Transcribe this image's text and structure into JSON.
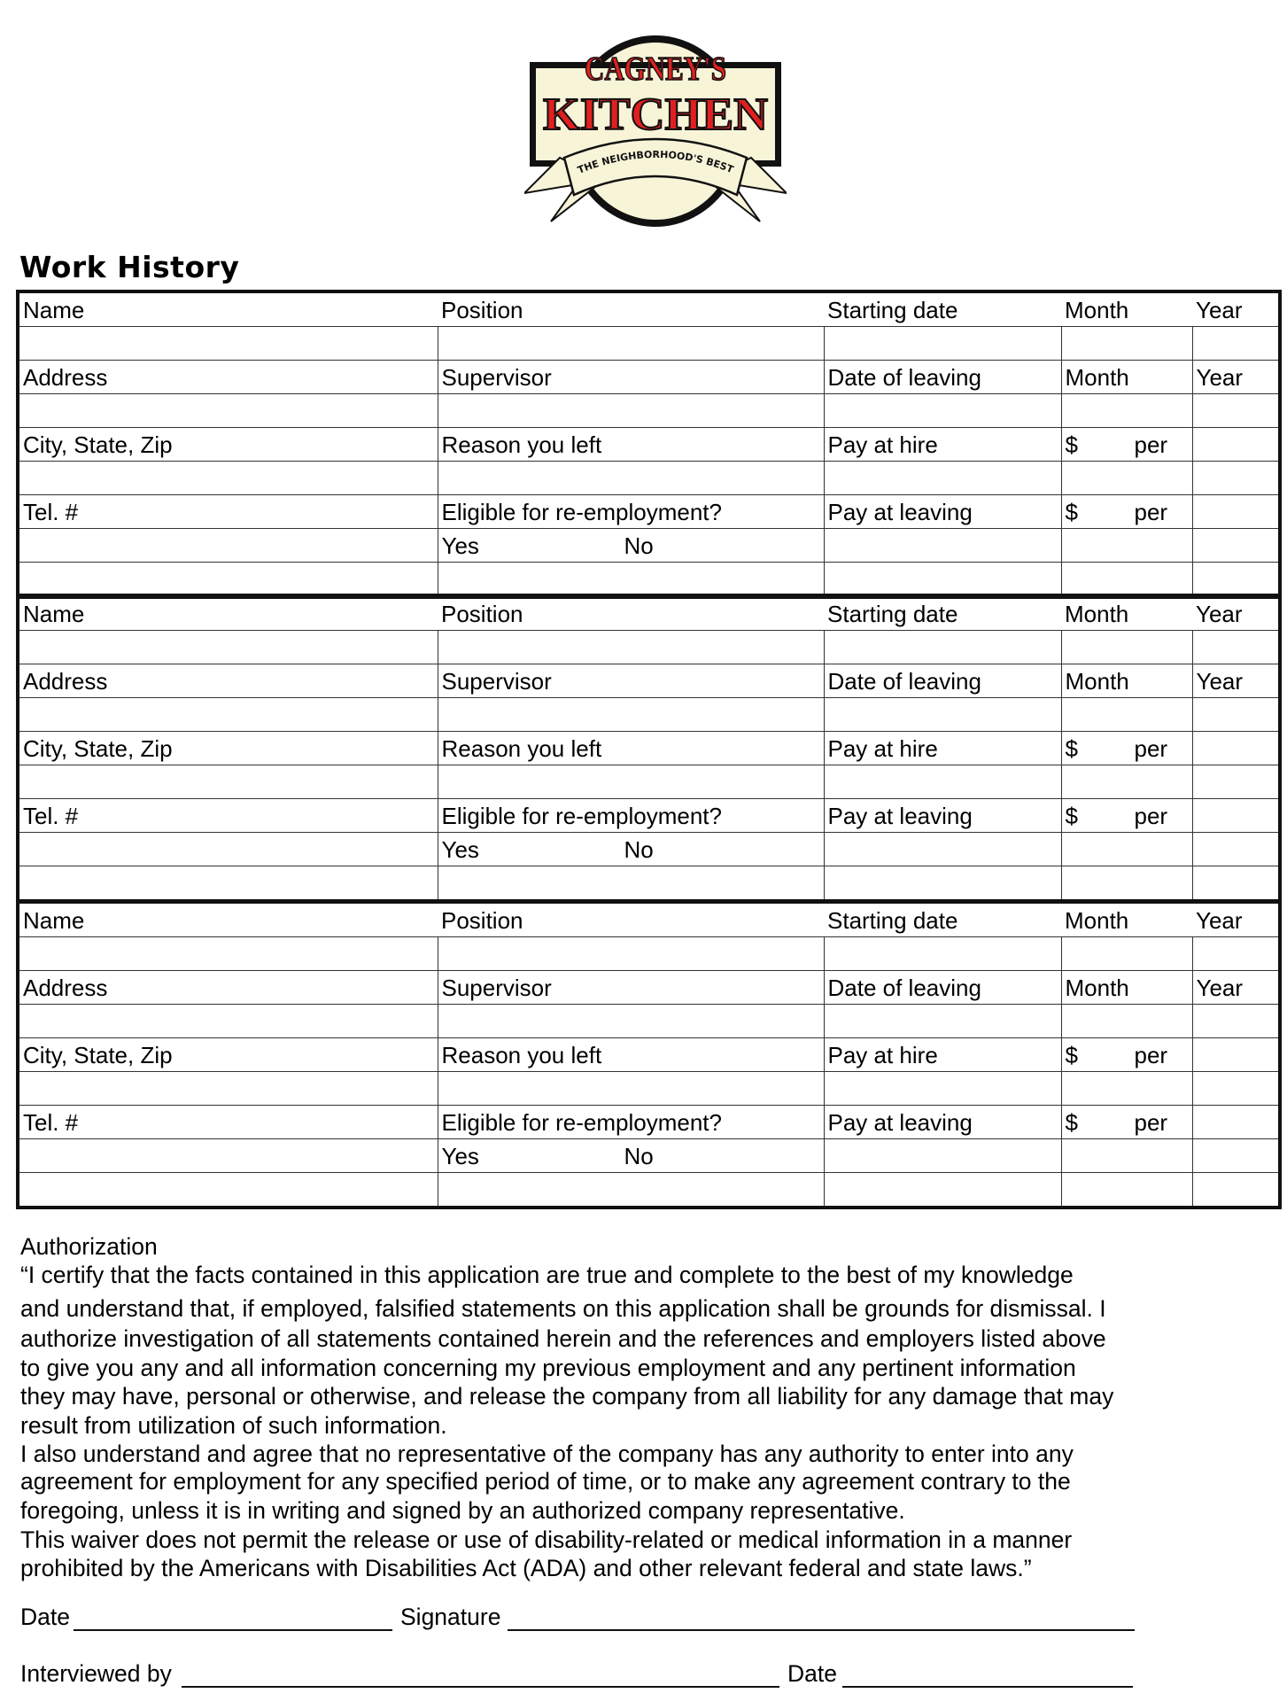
{
  "logo": {
    "line1": "CAGNEY'S",
    "line2": "KITCHEN",
    "tagline": "THE NEIGHBORHOOD'S BEST KEPT SECRET",
    "colors": {
      "red": "#e02020",
      "cream": "#f8f4d8",
      "black": "#111111"
    }
  },
  "work_history": {
    "title": "Work History",
    "blocks": [
      {
        "rows": [
          [
            "Name",
            "Position",
            "Starting date",
            "Month",
            "Year"
          ],
          [
            "",
            "",
            "",
            "",
            ""
          ],
          [
            "Address",
            "Supervisor",
            "Date of leaving",
            "Month",
            "Year"
          ],
          [
            "",
            "",
            "",
            "",
            ""
          ],
          [
            "City, State, Zip",
            "Reason you left",
            "Pay at hire",
            [
              "$",
              "per"
            ],
            ""
          ],
          [
            "",
            "",
            "",
            "",
            ""
          ],
          [
            "Tel. #",
            "Eligible for re-employment?",
            "Pay at leaving",
            [
              "$",
              "per"
            ],
            ""
          ],
          [
            "",
            [
              "Yes",
              "No"
            ],
            "",
            "",
            ""
          ],
          [
            "",
            "",
            "",
            "",
            ""
          ]
        ]
      },
      {
        "rows": [
          [
            "Name",
            "Position",
            "Starting date",
            "Month",
            "Year"
          ],
          [
            "",
            "",
            "",
            "",
            ""
          ],
          [
            "Address",
            "Supervisor",
            "Date of leaving",
            "Month",
            "Year"
          ],
          [
            "",
            "",
            "",
            "",
            ""
          ],
          [
            "City, State, Zip",
            "Reason you left",
            "Pay at hire",
            [
              "$",
              "per"
            ],
            ""
          ],
          [
            "",
            "",
            "",
            "",
            ""
          ],
          [
            "Tel. #",
            "Eligible for re-employment?",
            "Pay at leaving",
            [
              "$",
              "per"
            ],
            ""
          ],
          [
            "",
            [
              "Yes",
              "No"
            ],
            "",
            "",
            ""
          ],
          [
            "",
            "",
            "",
            "",
            ""
          ]
        ]
      },
      {
        "rows": [
          [
            "Name",
            "Position",
            "Starting date",
            "Month",
            "Year"
          ],
          [
            "",
            "",
            "",
            "",
            ""
          ],
          [
            "Address",
            "Supervisor",
            "Date of leaving",
            "Month",
            "Year"
          ],
          [
            "",
            "",
            "",
            "",
            ""
          ],
          [
            "City, State, Zip",
            "Reason you left",
            "Pay at hire",
            [
              "$",
              "per"
            ],
            ""
          ],
          [
            "",
            "",
            "",
            "",
            ""
          ],
          [
            "Tel. #",
            "Eligible for re-employment?",
            "Pay at leaving",
            [
              "$",
              "per"
            ],
            ""
          ],
          [
            "",
            [
              "Yes",
              "No"
            ],
            "",
            "",
            ""
          ],
          [
            "",
            "",
            "",
            "",
            ""
          ]
        ]
      }
    ]
  },
  "authorization": {
    "heading": "Authorization",
    "lines": [
      "“I certify that the facts contained in this application are true and complete to the best of my knowledge",
      "and understand that, if employed, falsified statements on this application shall be grounds for dismissal. I",
      "authorize investigation of all statements contained herein and the references and employers listed above",
      "to give you any and all information concerning my previous employment and any pertinent information",
      "they may have, personal or otherwise, and release the company from all liability for any damage that may",
      "result from utilization of such information.",
      "I also understand and agree that no representative of the company has any authority to enter into any",
      "agreement for employment for any specified period of time, or to make any agreement contrary to the",
      "foregoing, unless it is in writing and signed by an authorized company representative.",
      "This waiver does not permit the release or use of disability-related or medical information in a manner",
      "prohibited by the Americans with Disabilities Act (ADA) and other relevant federal and state laws.”"
    ]
  },
  "signatures": {
    "date_label": "Date",
    "signature_label": "Signature",
    "interviewed_by_label": "Interviewed by",
    "date2_label": "Date"
  }
}
